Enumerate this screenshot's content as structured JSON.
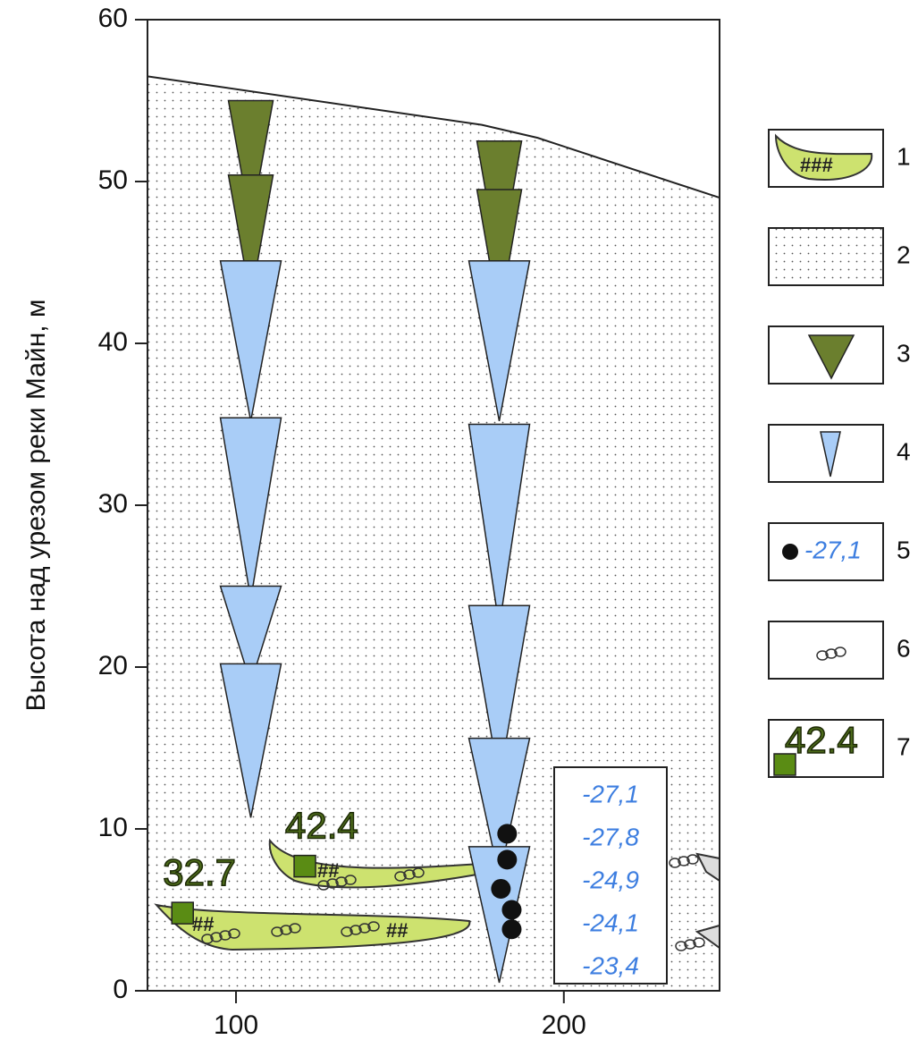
{
  "chart_data": {
    "type": "section",
    "ylabel": "Высота над урезом реки Майн, м",
    "xlim": [
      73,
      247.5
    ],
    "ylim": [
      0,
      60
    ],
    "xticks": [
      100,
      200
    ],
    "yticks": [
      0,
      10,
      20,
      30,
      40,
      50,
      60
    ],
    "surface": {
      "x": [
        73,
        175,
        192,
        247.5
      ],
      "y": [
        56.5,
        53.5,
        52.7,
        49.0
      ]
    },
    "triangles": [
      {
        "kind": "green",
        "x": 104.5,
        "top": 55.0,
        "bottom": 47.4
      },
      {
        "kind": "green",
        "x": 104.5,
        "top": 50.4,
        "bottom": 42.7
      },
      {
        "kind": "blue",
        "x": 104.5,
        "top": 45.1,
        "bottom": 35.2
      },
      {
        "kind": "blue",
        "x": 104.5,
        "top": 35.4,
        "bottom": 24.2
      },
      {
        "kind": "blue",
        "x": 104.5,
        "top": 25.0,
        "bottom": 19.0
      },
      {
        "kind": "blue",
        "x": 104.5,
        "top": 20.2,
        "bottom": 10.7
      },
      {
        "kind": "green",
        "x": 180.3,
        "top": 52.5,
        "bottom": 44.6
      },
      {
        "kind": "green",
        "x": 180.3,
        "top": 49.5,
        "bottom": 41.6
      },
      {
        "kind": "blue",
        "x": 180.3,
        "top": 45.1,
        "bottom": 35.2
      },
      {
        "kind": "blue",
        "x": 180.3,
        "top": 35.0,
        "bottom": 22.5
      },
      {
        "kind": "blue",
        "x": 180.3,
        "top": 23.8,
        "bottom": 13.0
      },
      {
        "kind": "blue",
        "x": 180.3,
        "top": 15.6,
        "bottom": 7.0
      },
      {
        "kind": "blue",
        "x": 180.3,
        "top": 8.9,
        "bottom": 0.5
      }
    ],
    "dots": {
      "x": [
        182.7,
        182.7,
        180.8,
        184.1,
        184.1
      ],
      "y": [
        9.7,
        8.1,
        6.3,
        5.0,
        3.8
      ],
      "labels": [
        "-27,1",
        "-27,8",
        "-24,9",
        "-24,1",
        "-23,4"
      ]
    },
    "sites": [
      {
        "x": 121,
        "y": 7.7,
        "value": 42.4
      },
      {
        "x": 83.7,
        "y": 4.8,
        "value": 32.7
      }
    ],
    "legend": [
      {
        "label": "1"
      },
      {
        "label": "2"
      },
      {
        "label": "3"
      },
      {
        "label": "4"
      },
      {
        "label": "5",
        "text": "-27,1"
      },
      {
        "label": "6"
      },
      {
        "label": "7",
        "text": "42.4"
      }
    ]
  }
}
